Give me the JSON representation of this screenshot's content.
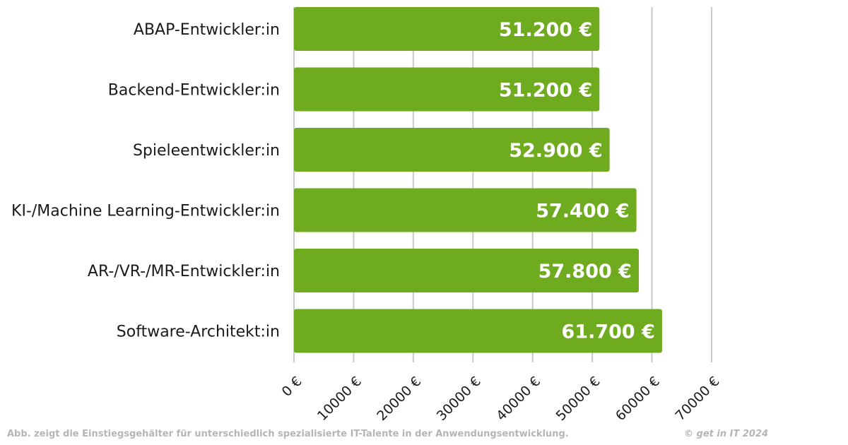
{
  "chart_data": {
    "type": "bar",
    "orientation": "horizontal",
    "categories": [
      "ABAP-Entwickler:in",
      "Backend-Entwickler:in",
      "Spieleentwickler:in",
      "KI-/Machine Learning-Entwickler:in",
      "AR-/VR-/MR-Entwickler:in",
      "Software-Architekt:in"
    ],
    "values": [
      51200,
      51200,
      52900,
      57400,
      57800,
      61700
    ],
    "value_labels": [
      "51.200 €",
      "51.200 €",
      "52.900 €",
      "57.400 €",
      "57.800 €",
      "61.700 €"
    ],
    "x_ticks": [
      0,
      10000,
      20000,
      30000,
      40000,
      50000,
      60000,
      70000
    ],
    "x_tick_labels": [
      "0 €",
      "10000 €",
      "20000 €",
      "30000 €",
      "40000 €",
      "50000 €",
      "60000 €",
      "70000 €"
    ],
    "xlim": [
      0,
      70000
    ],
    "grid": true,
    "legend": "none",
    "bar_color": "#6fab1e",
    "grid_color": "#c8c8c8",
    "label_color": "#1a1a1a",
    "value_label_color": "#ffffff",
    "title": "",
    "xlabel": "",
    "ylabel": ""
  },
  "footer": {
    "caption": "Abb. zeigt die Einstiegsgehälter für unterschiedlich spezialisierte IT-Talente in der Anwendungsentwicklung.",
    "copyright": "© get in IT 2024"
  }
}
